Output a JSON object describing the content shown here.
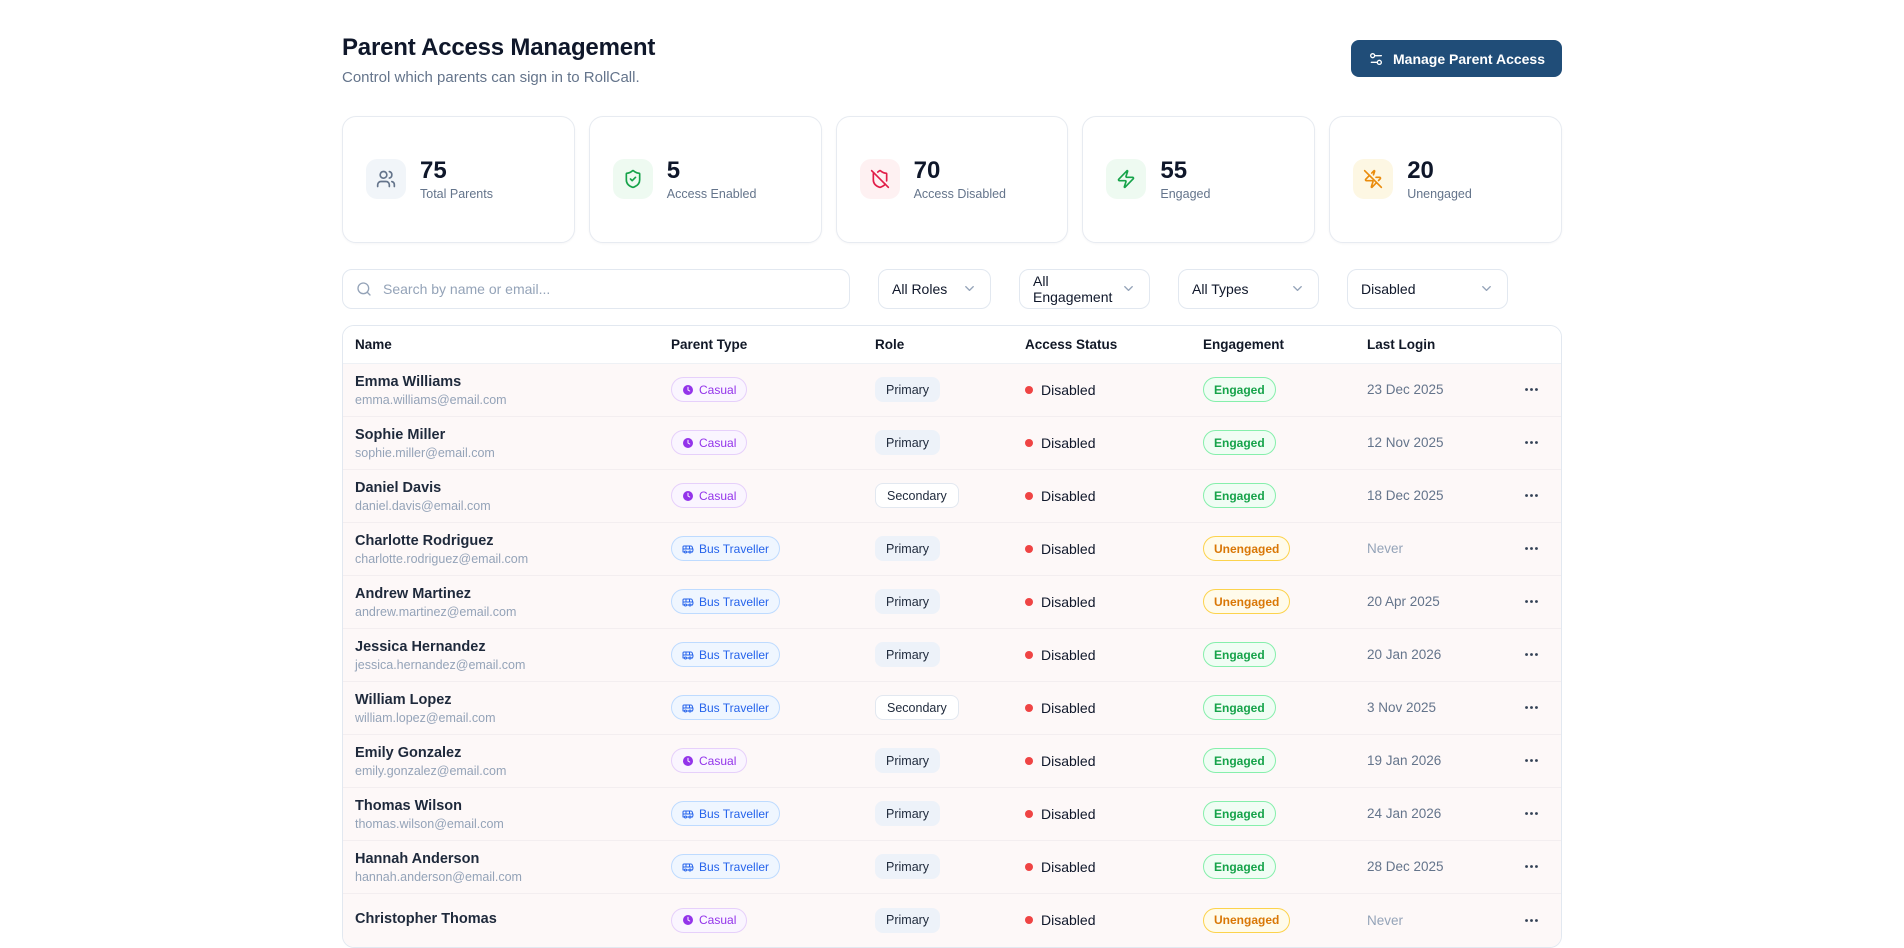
{
  "page": {
    "title": "Parent Access Management",
    "subtitle": "Control which parents can sign in to RollCall.",
    "action_button": {
      "label": "Manage Parent Access",
      "icon": "sliders-icon"
    }
  },
  "colors": {
    "brand_button": "#204d78",
    "disabled_dot": "#ef4444",
    "engaged_text": "#16a34a",
    "unengaged_text": "#d97706",
    "casual_badge_text": "#9333ea",
    "bus_badge_text": "#2563eb"
  },
  "stats": [
    {
      "value": "75",
      "label": "Total Parents",
      "icon": "users-icon",
      "icon_color": "#64748b",
      "icon_bg": "#f1f5f9"
    },
    {
      "value": "5",
      "label": "Access Enabled",
      "icon": "shield-check-icon",
      "icon_color": "#16a34a",
      "icon_bg": "#eefaf1"
    },
    {
      "value": "70",
      "label": "Access Disabled",
      "icon": "shield-off-icon",
      "icon_color": "#e11d48",
      "icon_bg": "#fef1f2"
    },
    {
      "value": "55",
      "label": "Engaged",
      "icon": "zap-icon",
      "icon_color": "#16a34a",
      "icon_bg": "#eefaf1"
    },
    {
      "value": "20",
      "label": "Unengaged",
      "icon": "zap-off-icon",
      "icon_color": "#ea8c0d",
      "icon_bg": "#fdf7e3"
    }
  ],
  "filters": {
    "search_placeholder": "Search by name or email...",
    "dropdowns": [
      {
        "value": "All Roles"
      },
      {
        "value": "All Engagement"
      },
      {
        "value": "All Types"
      },
      {
        "value": "Disabled"
      }
    ]
  },
  "table": {
    "columns": [
      "Name",
      "Parent Type",
      "Role",
      "Access Status",
      "Engagement",
      "Last Login"
    ],
    "rows": [
      {
        "name": "Emma Williams",
        "email": "emma.williams@email.com",
        "parent_type": "Casual",
        "role": "Primary",
        "access_status": "Disabled",
        "engagement": "Engaged",
        "last_login": "23 Dec 2025"
      },
      {
        "name": "Sophie Miller",
        "email": "sophie.miller@email.com",
        "parent_type": "Casual",
        "role": "Primary",
        "access_status": "Disabled",
        "engagement": "Engaged",
        "last_login": "12 Nov 2025"
      },
      {
        "name": "Daniel Davis",
        "email": "daniel.davis@email.com",
        "parent_type": "Casual",
        "role": "Secondary",
        "access_status": "Disabled",
        "engagement": "Engaged",
        "last_login": "18 Dec 2025"
      },
      {
        "name": "Charlotte Rodriguez",
        "email": "charlotte.rodriguez@email.com",
        "parent_type": "Bus Traveller",
        "role": "Primary",
        "access_status": "Disabled",
        "engagement": "Unengaged",
        "last_login": "Never"
      },
      {
        "name": "Andrew Martinez",
        "email": "andrew.martinez@email.com",
        "parent_type": "Bus Traveller",
        "role": "Primary",
        "access_status": "Disabled",
        "engagement": "Unengaged",
        "last_login": "20 Apr 2025"
      },
      {
        "name": "Jessica Hernandez",
        "email": "jessica.hernandez@email.com",
        "parent_type": "Bus Traveller",
        "role": "Primary",
        "access_status": "Disabled",
        "engagement": "Engaged",
        "last_login": "20 Jan 2026"
      },
      {
        "name": "William Lopez",
        "email": "william.lopez@email.com",
        "parent_type": "Bus Traveller",
        "role": "Secondary",
        "access_status": "Disabled",
        "engagement": "Engaged",
        "last_login": "3 Nov 2025"
      },
      {
        "name": "Emily Gonzalez",
        "email": "emily.gonzalez@email.com",
        "parent_type": "Casual",
        "role": "Primary",
        "access_status": "Disabled",
        "engagement": "Engaged",
        "last_login": "19 Jan 2026"
      },
      {
        "name": "Thomas Wilson",
        "email": "thomas.wilson@email.com",
        "parent_type": "Bus Traveller",
        "role": "Primary",
        "access_status": "Disabled",
        "engagement": "Engaged",
        "last_login": "24 Jan 2026"
      },
      {
        "name": "Hannah Anderson",
        "email": "hannah.anderson@email.com",
        "parent_type": "Bus Traveller",
        "role": "Primary",
        "access_status": "Disabled",
        "engagement": "Engaged",
        "last_login": "28 Dec 2025"
      },
      {
        "name": "Christopher Thomas",
        "email": "",
        "parent_type": "Casual",
        "role": "Primary",
        "access_status": "Disabled",
        "engagement": "Unengaged",
        "last_login": "Never"
      }
    ]
  }
}
